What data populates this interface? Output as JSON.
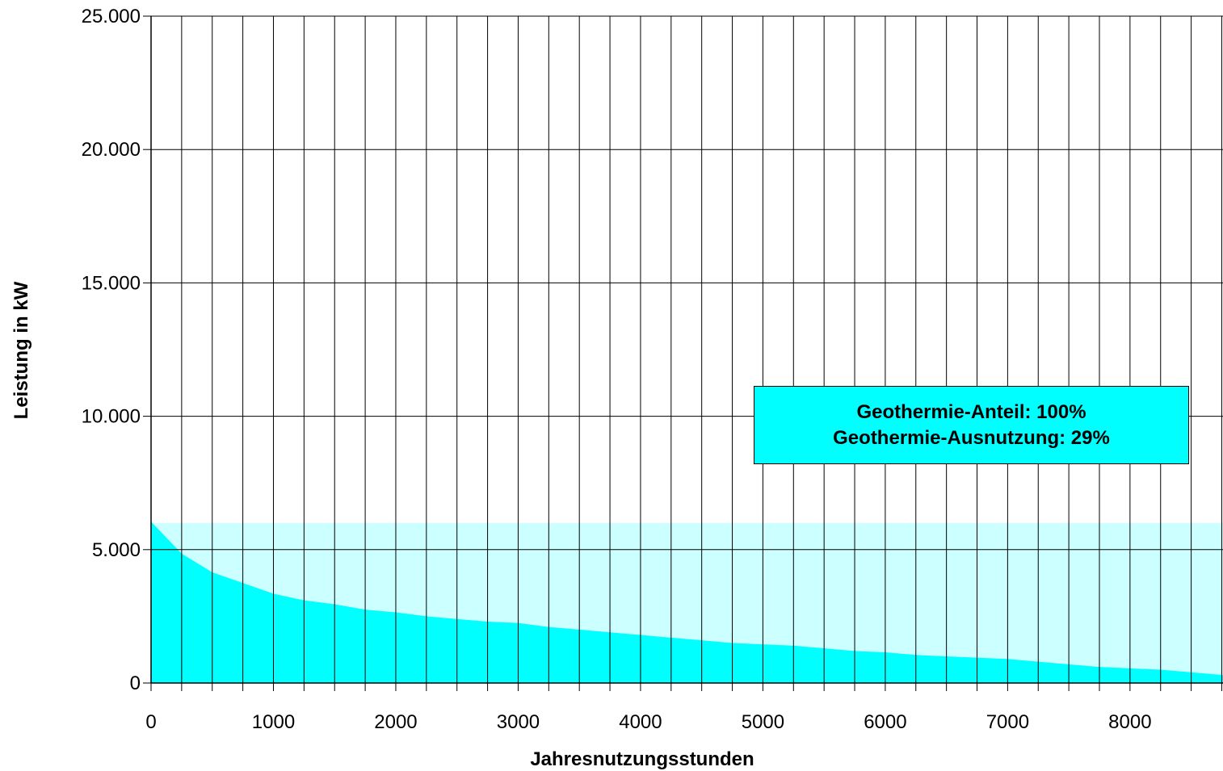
{
  "chart_data": {
    "type": "area",
    "xlabel": "Jahresnutzungsstunden",
    "ylabel": "Leistung in kW",
    "xlim": [
      0,
      8760
    ],
    "ylim": [
      0,
      25000
    ],
    "x_ticks": [
      0,
      1000,
      2000,
      3000,
      4000,
      5000,
      6000,
      7000,
      8000
    ],
    "x_tick_labels": [
      "0",
      "1000",
      "2000",
      "3000",
      "4000",
      "5000",
      "6000",
      "7000",
      "8000"
    ],
    "y_ticks": [
      0,
      5000,
      10000,
      15000,
      20000,
      25000
    ],
    "y_tick_labels": [
      "0",
      "5.000",
      "10.000",
      "15.000",
      "20.000",
      "25.000"
    ],
    "vertical_grid_step": 250,
    "grid": {
      "vertical": true,
      "horizontal": true
    },
    "series": [
      {
        "type": "area",
        "color": "#ccffff",
        "x": [
          0,
          8760
        ],
        "y": [
          6000,
          6000
        ]
      },
      {
        "type": "area",
        "color": "#00ffff",
        "x": [
          0,
          250,
          500,
          750,
          1000,
          1250,
          1500,
          1750,
          2000,
          2250,
          2500,
          2750,
          3000,
          3250,
          3500,
          3750,
          4000,
          4250,
          4500,
          4750,
          5000,
          5250,
          5500,
          5750,
          6000,
          6250,
          6500,
          6750,
          7000,
          7250,
          7500,
          7750,
          8000,
          8250,
          8500,
          8760
        ],
        "y": [
          6050,
          4850,
          4150,
          3750,
          3350,
          3100,
          2950,
          2750,
          2650,
          2500,
          2400,
          2300,
          2250,
          2100,
          2000,
          1900,
          1800,
          1700,
          1600,
          1500,
          1450,
          1400,
          1300,
          1200,
          1150,
          1050,
          1000,
          950,
          900,
          800,
          700,
          600,
          550,
          500,
          400,
          300
        ]
      }
    ],
    "annotation": {
      "lines": [
        "Geothermie-Anteil: 100%",
        "Geothermie-Ausnutzung: 29%"
      ],
      "background": "#00ffff"
    }
  }
}
